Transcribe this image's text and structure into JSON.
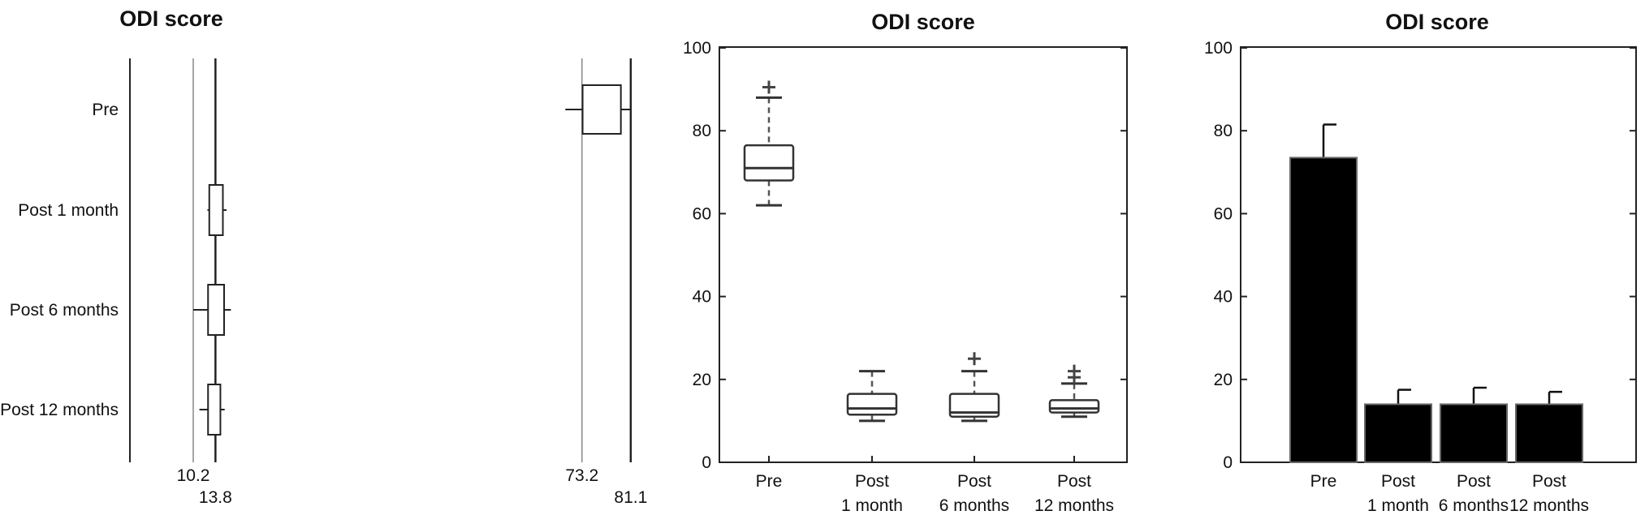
{
  "chart_data": [
    {
      "type": "forest",
      "title": "ODI score",
      "categories": [
        "Pre",
        "Post 1 month",
        "Post 6 months",
        "Post 12 months"
      ],
      "reference_lines": [
        10.2,
        13.8,
        73.2,
        81.1
      ],
      "reference_labels": [
        "10.2",
        "13.8",
        "73.2",
        "81.1"
      ],
      "xlim": [
        -10,
        95
      ],
      "points": [
        {
          "category": "Pre",
          "q1": 73.3,
          "q3": 79.5,
          "lo": 70.5,
          "hi": 81.1
        },
        {
          "category": "Post 1 month",
          "q1": 12.8,
          "q3": 15.0,
          "lo": 12.5,
          "hi": 15.6
        },
        {
          "category": "Post 6 months",
          "q1": 12.6,
          "q3": 15.2,
          "lo": 10.2,
          "hi": 16.3
        },
        {
          "category": "Post 12 months",
          "q1": 12.6,
          "q3": 14.6,
          "lo": 11.2,
          "hi": 15.3
        }
      ]
    },
    {
      "type": "boxplot",
      "title": "ODI score",
      "categories": [
        "Pre",
        "Post 1 month",
        "Post 6 months",
        "Post 12 months"
      ],
      "category_lines": [
        [
          "Pre"
        ],
        [
          "Post",
          "1 month"
        ],
        [
          "Post",
          "6 months"
        ],
        [
          "Post",
          "12 months"
        ]
      ],
      "ylim": [
        0,
        100
      ],
      "yticks": [
        0,
        20,
        40,
        60,
        80,
        100
      ],
      "boxes": [
        {
          "category": "Pre",
          "min": 62,
          "q1": 68,
          "median": 71,
          "q3": 76.5,
          "max": 88,
          "outliers": [
            90.5
          ]
        },
        {
          "category": "Post 1 month",
          "min": 10,
          "q1": 11.5,
          "median": 13,
          "q3": 16.5,
          "max": 22,
          "outliers": []
        },
        {
          "category": "Post 6 months",
          "min": 10,
          "q1": 11,
          "median": 12,
          "q3": 16.5,
          "max": 22,
          "outliers": [
            25
          ]
        },
        {
          "category": "Post 12 months",
          "min": 11,
          "q1": 12,
          "median": 13,
          "q3": 15,
          "max": 19,
          "outliers": [
            20.5,
            22
          ]
        }
      ]
    },
    {
      "type": "bar",
      "title": "ODI score",
      "categories": [
        "Pre",
        "Post 1 month",
        "Post 6 months",
        "Post 12 months"
      ],
      "category_lines": [
        [
          "Pre"
        ],
        [
          "Post",
          "1 month"
        ],
        [
          "Post",
          "6 months"
        ],
        [
          "Post",
          "12 months"
        ]
      ],
      "values": [
        73.5,
        14,
        14,
        14
      ],
      "errors": [
        8,
        3.5,
        4,
        3
      ],
      "ylim": [
        0,
        100
      ],
      "yticks": [
        0,
        20,
        40,
        60,
        80,
        100
      ]
    }
  ]
}
